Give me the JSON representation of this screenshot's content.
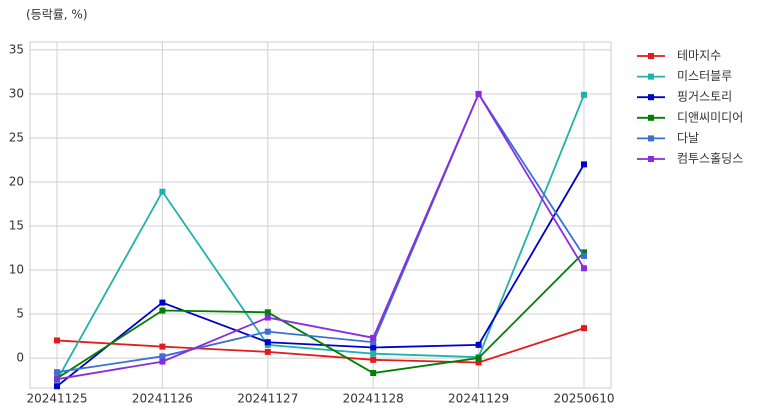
{
  "chart_data": {
    "type": "line",
    "y_label": "(등락률, %)",
    "categories": [
      "20241125",
      "20241126",
      "20241127",
      "20241128",
      "20241129",
      "20250610"
    ],
    "series": [
      {
        "name": "테마지수",
        "color": "#e41a1c",
        "values": [
          2.0,
          1.3,
          0.7,
          -0.2,
          -0.5,
          3.4
        ]
      },
      {
        "name": "미스터블루",
        "color": "#20b2aa",
        "values": [
          -2.5,
          18.9,
          1.5,
          0.5,
          0.1,
          29.9
        ]
      },
      {
        "name": "핑거스토리",
        "color": "#0000cd",
        "values": [
          -3.2,
          6.3,
          1.8,
          1.2,
          1.5,
          22.0
        ]
      },
      {
        "name": "디앤씨미디어",
        "color": "#008000",
        "values": [
          -2.3,
          5.4,
          5.2,
          -1.7,
          0.0,
          12.0
        ]
      },
      {
        "name": "다날",
        "color": "#3a6fd8",
        "values": [
          -1.6,
          0.2,
          3.0,
          1.8,
          30.0,
          11.6
        ]
      },
      {
        "name": "컴투스홀딩스",
        "color": "#8a2be2",
        "values": [
          -2.4,
          -0.4,
          4.6,
          2.3,
          30.0,
          10.2
        ]
      }
    ],
    "ylim": [
      -3.4,
      35.9
    ],
    "yticks": [
      0,
      5,
      10,
      15,
      20,
      25,
      30,
      35
    ],
    "grid": true,
    "legend": "outside-right"
  }
}
